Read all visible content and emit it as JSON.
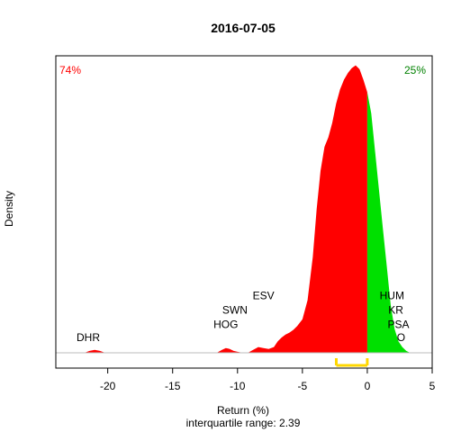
{
  "chart_data": {
    "type": "area",
    "title": "2016-07-05",
    "xlabel": "Return (%)",
    "ylabel": "Density",
    "subtitle": "interquartile range: 2.39",
    "xlim": [
      -24,
      5
    ],
    "x_ticks": [
      -20,
      -15,
      -10,
      -5,
      0,
      5
    ],
    "ylim": [
      0,
      0.31
    ],
    "split_at": 0,
    "left_pct_label": "74%",
    "right_pct_label": "25%",
    "colors": {
      "negative": "#ff0000",
      "positive": "#00e000",
      "iqr": "#ffd700",
      "left_pct": "#ff0000",
      "right_pct": "#008000"
    },
    "iqr": [
      -2.39,
      0
    ],
    "density": {
      "x": [
        -21.8,
        -21.4,
        -21.0,
        -20.6,
        -20.2,
        -19.5,
        -15.0,
        -11.6,
        -11.2,
        -10.9,
        -10.6,
        -10.3,
        -10.0,
        -9.6,
        -9.2,
        -8.8,
        -8.4,
        -8.0,
        -7.6,
        -7.2,
        -6.9,
        -6.6,
        -6.3,
        -6.0,
        -5.7,
        -5.4,
        -5.0,
        -4.6,
        -4.2,
        -3.9,
        -3.6,
        -3.3,
        -3.0,
        -2.7,
        -2.4,
        -2.1,
        -1.8,
        -1.5,
        -1.2,
        -0.9,
        -0.6,
        -0.3,
        0.0,
        0.3,
        0.6,
        0.9,
        1.2,
        1.5,
        1.8,
        2.1,
        2.4,
        2.7,
        3.0,
        3.3
      ],
      "y": [
        0.0,
        0.002,
        0.003,
        0.002,
        0.0,
        0.0,
        0.0,
        0.0,
        0.003,
        0.005,
        0.004,
        0.002,
        0.001,
        0.0,
        0.0,
        0.003,
        0.006,
        0.005,
        0.004,
        0.006,
        0.012,
        0.016,
        0.019,
        0.021,
        0.024,
        0.028,
        0.035,
        0.055,
        0.1,
        0.15,
        0.19,
        0.215,
        0.225,
        0.24,
        0.26,
        0.275,
        0.285,
        0.292,
        0.297,
        0.3,
        0.296,
        0.285,
        0.272,
        0.25,
        0.21,
        0.17,
        0.13,
        0.09,
        0.05,
        0.025,
        0.012,
        0.006,
        0.002,
        0.0
      ]
    },
    "annotations": [
      {
        "text": "DHR",
        "x": -21.5,
        "y": 0.012
      },
      {
        "text": "HOG",
        "x": -10.9,
        "y": 0.026
      },
      {
        "text": "SWN",
        "x": -10.2,
        "y": 0.041
      },
      {
        "text": "ESV",
        "x": -8.0,
        "y": 0.056
      },
      {
        "text": "HUM",
        "x": 1.9,
        "y": 0.056
      },
      {
        "text": "KR",
        "x": 2.2,
        "y": 0.041
      },
      {
        "text": "PSA",
        "x": 2.4,
        "y": 0.026
      },
      {
        "text": "O",
        "x": 2.6,
        "y": 0.012
      }
    ]
  }
}
